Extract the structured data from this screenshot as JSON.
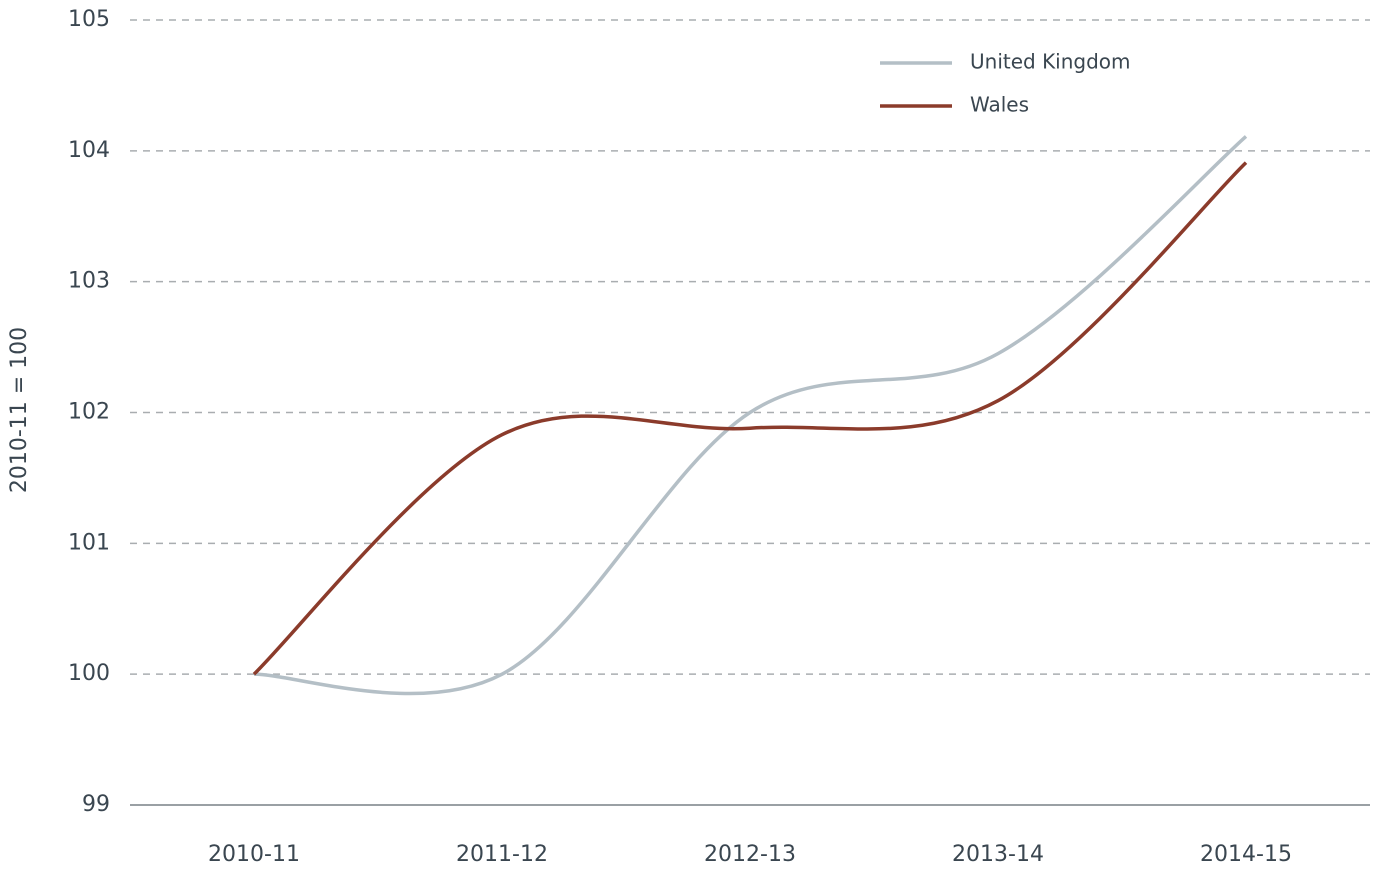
{
  "chart_data": {
    "type": "line",
    "y_label": "2010-11 = 100",
    "categories": [
      "2010-11",
      "2011-12",
      "2012-13",
      "2013-14",
      "2014-15"
    ],
    "series": [
      {
        "name": "United Kingdom",
        "color": "#b4bfc6",
        "values": [
          100,
          100.0,
          102.0,
          102.45,
          104.11
        ]
      },
      {
        "name": "Wales",
        "color": "#8b3b2b",
        "values": [
          100,
          101.83,
          101.88,
          102.09,
          103.91
        ]
      }
    ],
    "ylim": [
      99,
      105
    ],
    "yticks": [
      99,
      100,
      101,
      102,
      103,
      104,
      105
    ],
    "grid": true,
    "legend": "top-right"
  }
}
